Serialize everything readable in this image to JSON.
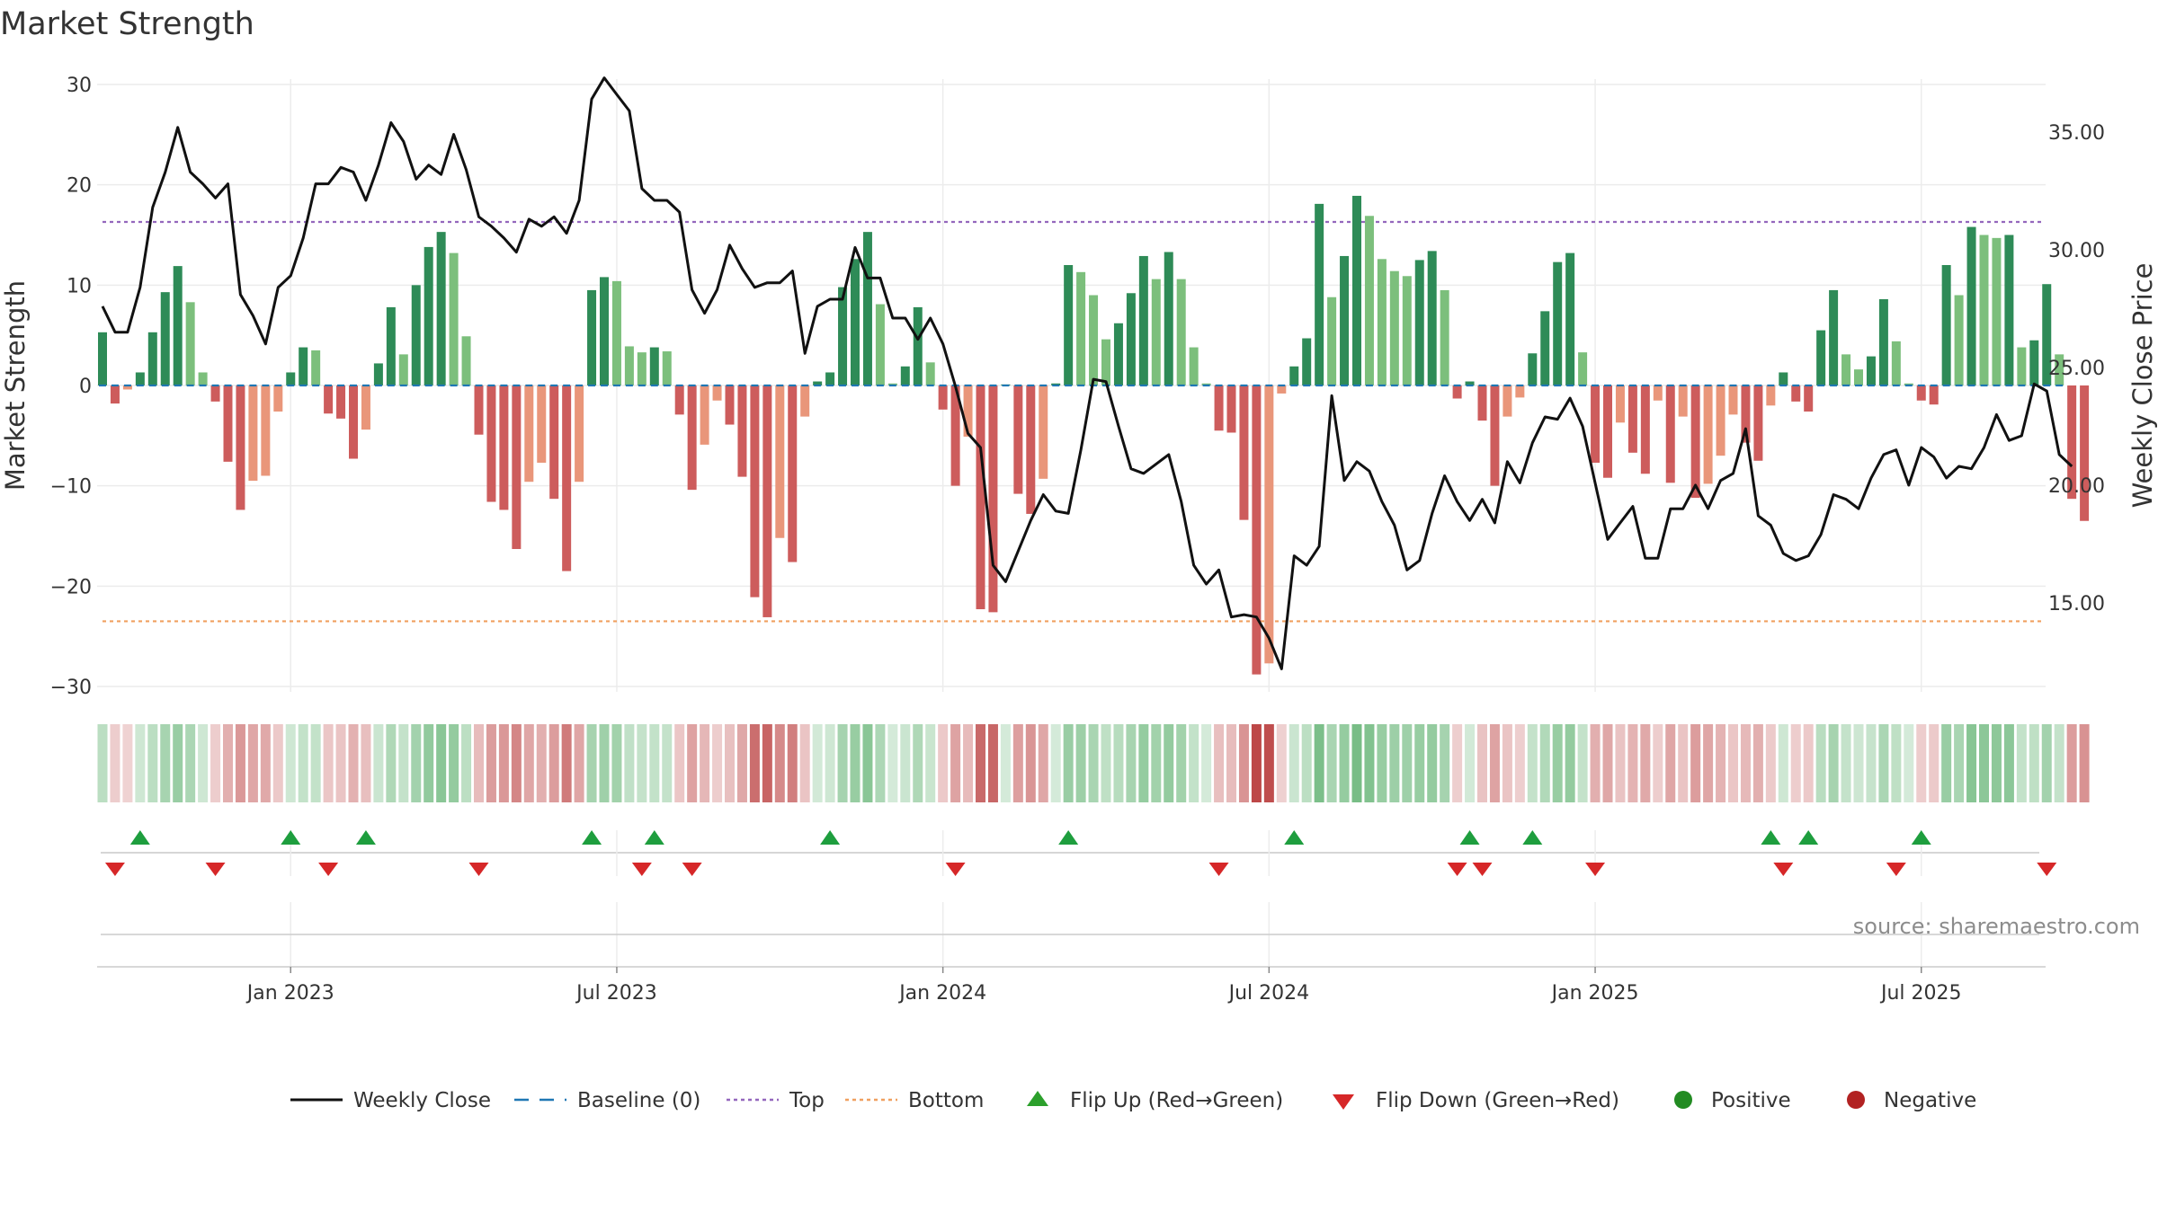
{
  "chart_data": {
    "type": "bar",
    "title": "Market Strength",
    "ylabel": "Market Strength",
    "y2label": "Weekly Close Price",
    "ylim": [
      -30,
      30
    ],
    "y2lim": [
      11.8,
      37.3
    ],
    "y_ticks": [
      30,
      20,
      10,
      0,
      -10,
      -20,
      -30
    ],
    "y_tick_labels": [
      "30",
      "20",
      "10",
      "0",
      "−10",
      "−20",
      "−30"
    ],
    "y2_ticks": [
      35,
      30,
      25,
      20,
      15
    ],
    "y2_tick_labels": [
      "35.00",
      "30.00",
      "25.00",
      "20.00",
      "15.00"
    ],
    "x_tick_labels": [
      "Jan 2023",
      "Jul 2023",
      "Jan 2024",
      "Jul 2024",
      "Jan 2025",
      "Jul 2025"
    ],
    "x_tick_weeks": [
      15,
      41,
      67,
      93,
      119,
      145
    ],
    "week_count": 157,
    "top_threshold": 16.3,
    "bottom_threshold": -23.5,
    "series": [
      {
        "name": "Market Strength",
        "values": [
          5.3,
          -1.8,
          -0.4,
          1.3,
          5.3,
          9.3,
          11.9,
          8.3,
          1.3,
          -1.6,
          -7.6,
          -12.4,
          -9.5,
          -9.0,
          -2.6,
          1.3,
          3.8,
          3.5,
          -2.8,
          -3.3,
          -7.3,
          -4.4,
          2.2,
          7.8,
          3.1,
          10.0,
          13.8,
          15.3,
          13.2,
          4.9,
          -4.9,
          -11.6,
          -12.4,
          -16.3,
          -9.6,
          -7.7,
          -11.3,
          -18.5,
          -9.6,
          9.5,
          10.8,
          10.4,
          3.9,
          3.3,
          3.8,
          3.4,
          -2.9,
          -10.4,
          -5.9,
          -1.5,
          -3.9,
          -9.1,
          -21.1,
          -23.1,
          -15.2,
          -17.6,
          -3.1,
          0.4,
          1.3,
          9.8,
          12.6,
          15.3,
          8.1,
          0.2,
          1.9,
          7.8,
          2.3,
          -2.4,
          -10.0,
          -5.1,
          -22.3,
          -22.6,
          0.1,
          -10.8,
          -12.8,
          -9.3,
          0.2,
          12.0,
          11.3,
          9.0,
          4.6,
          6.2,
          9.2,
          12.9,
          10.6,
          13.3,
          10.6,
          3.8,
          0.2,
          -4.5,
          -4.7,
          -13.4,
          -28.8,
          -27.7,
          -0.8,
          1.9,
          4.7,
          18.1,
          8.8,
          12.9,
          18.9,
          16.9,
          12.6,
          11.4,
          10.9,
          12.5,
          13.4,
          9.5,
          -1.3,
          0.4,
          -3.5,
          -10.0,
          -3.1,
          -1.2,
          3.2,
          7.4,
          12.3,
          13.2,
          3.3,
          -7.7,
          -9.2,
          -3.7,
          -6.7,
          -8.8,
          -1.5,
          -9.7,
          -3.1,
          -11.2,
          -9.8,
          -7.0,
          -2.9,
          -5.7,
          -7.5,
          -2.0,
          1.3,
          -1.6,
          -2.6,
          5.5,
          9.5,
          3.1,
          1.6,
          2.9,
          8.6,
          4.4,
          0.2,
          -1.5,
          -1.9,
          12.0,
          9.0,
          15.8,
          15.0,
          14.7,
          15.0,
          3.8,
          4.5,
          10.1,
          3.1,
          -11.3,
          -13.5
        ]
      },
      {
        "name": "Weekly Close",
        "values": [
          27.6,
          26.5,
          26.5,
          28.4,
          31.8,
          33.3,
          35.2,
          33.3,
          32.8,
          32.2,
          32.8,
          28.1,
          27.2,
          26.0,
          28.4,
          28.9,
          30.5,
          32.8,
          32.8,
          33.5,
          33.3,
          32.1,
          33.6,
          35.4,
          34.6,
          33.0,
          33.6,
          33.2,
          34.9,
          33.4,
          31.4,
          31.0,
          30.5,
          29.9,
          31.3,
          31.0,
          31.4,
          30.7,
          32.1,
          36.4,
          37.3,
          36.6,
          35.9,
          32.6,
          32.1,
          32.1,
          31.6,
          28.3,
          27.3,
          28.3,
          30.2,
          29.2,
          28.4,
          28.6,
          28.6,
          29.1,
          25.6,
          27.6,
          27.9,
          27.9,
          30.1,
          28.8,
          28.8,
          27.1,
          27.1,
          26.2,
          27.1,
          26.0,
          24.2,
          22.2,
          21.6,
          16.6,
          15.9,
          17.2,
          18.5,
          19.6,
          18.9,
          18.8,
          21.5,
          24.5,
          24.4,
          22.5,
          20.7,
          20.5,
          20.9,
          21.3,
          19.3,
          16.6,
          15.8,
          16.4,
          14.4,
          14.5,
          14.4,
          13.5,
          12.2,
          17.0,
          16.6,
          17.4,
          23.8,
          20.2,
          21.0,
          20.6,
          19.3,
          18.3,
          16.4,
          16.8,
          18.8,
          20.4,
          19.3,
          18.5,
          19.4,
          18.4,
          21.0,
          20.1,
          21.8,
          22.9,
          22.8,
          23.7,
          22.5,
          20.1,
          17.7,
          18.4,
          19.1,
          16.9,
          16.9,
          19.0,
          19.0,
          20.0,
          19.0,
          20.2,
          20.5,
          22.4,
          18.7,
          18.3,
          17.1,
          16.8,
          17.0,
          17.9,
          19.6,
          19.4,
          19.0,
          20.3,
          21.3,
          21.5,
          20.0,
          21.6,
          21.2,
          20.3,
          20.8,
          20.7,
          21.6,
          23.0,
          21.9,
          22.1,
          24.3,
          24.0,
          21.3,
          20.8
        ]
      }
    ],
    "flip_up_weeks": [
      3,
      15,
      21,
      39,
      44,
      58,
      77,
      95,
      109,
      114,
      133,
      136,
      145
    ],
    "flip_down_weeks": [
      1,
      9,
      18,
      30,
      43,
      47,
      68,
      89,
      108,
      110,
      119,
      134,
      143,
      155
    ],
    "legend": [
      {
        "label": "Weekly Close",
        "kind": "line",
        "color": "#111111"
      },
      {
        "label": "Baseline (0)",
        "kind": "dash",
        "color": "#1f77b4"
      },
      {
        "label": "Top",
        "kind": "dot",
        "color": "#9467bd"
      },
      {
        "label": "Bottom",
        "kind": "dot",
        "color": "#f0a060"
      },
      {
        "label": "Flip Up (Red→Green)",
        "kind": "tri-up",
        "color": "#2ca02c"
      },
      {
        "label": "Flip Down (Green→Red)",
        "kind": "tri-down",
        "color": "#d62728"
      },
      {
        "label": "Positive",
        "kind": "circle",
        "color": "#228b22"
      },
      {
        "label": "Negative",
        "kind": "circle",
        "color": "#b22222"
      }
    ],
    "source": "source: sharemaestro.com",
    "colors": {
      "pos_strong": "#2e8b57",
      "pos_light": "#7cbf7c",
      "neg_strong": "#cd5c5c",
      "neg_light": "#e9967a",
      "price_line": "#111111",
      "top_line": "#9467bd",
      "bottom_line": "#f0a060",
      "baseline": "#1f77b4"
    }
  }
}
